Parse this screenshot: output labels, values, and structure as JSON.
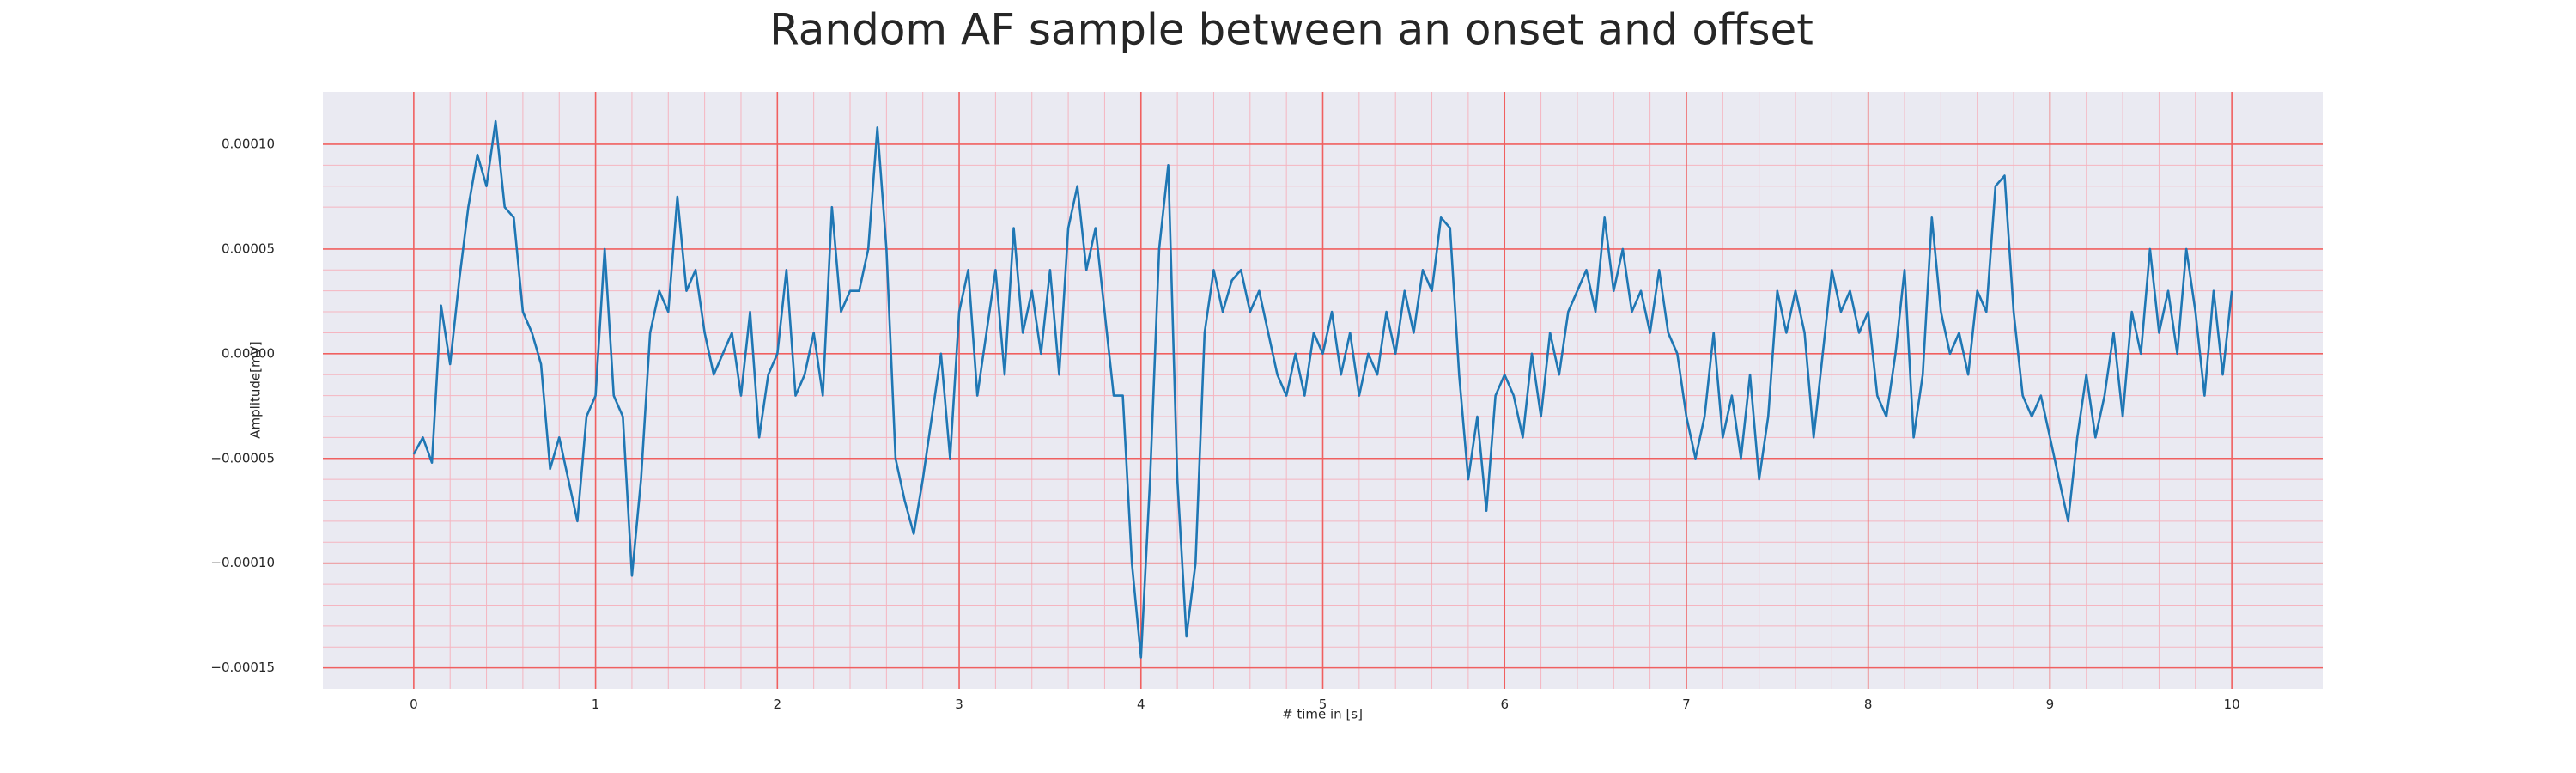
{
  "chart_data": {
    "type": "line",
    "title": "Random AF sample between an onset and offset",
    "xlabel": "# time in [s]",
    "ylabel": "Amplitude[mV]",
    "color": "#1f77b4",
    "grid": true,
    "minor_grid": true,
    "xlim": [
      -0.5,
      10.5
    ],
    "ylim": [
      -0.00016,
      0.000125
    ],
    "xticks": [
      0,
      1,
      2,
      3,
      4,
      5,
      6,
      7,
      8,
      9,
      10
    ],
    "yticks": [
      {
        "value": 0.0001,
        "label": "0.00010"
      },
      {
        "value": 5e-05,
        "label": "0.00005"
      },
      {
        "value": 0,
        "label": "0.00000"
      },
      {
        "value": -5e-05,
        "label": "−0.00005"
      },
      {
        "value": -0.0001,
        "label": "−0.00010"
      },
      {
        "value": -0.00015,
        "label": "−0.00015"
      }
    ],
    "x": [
      0,
      0.05,
      0.1,
      0.15,
      0.2,
      0.25,
      0.3,
      0.35,
      0.4,
      0.45,
      0.5,
      0.55,
      0.6,
      0.65,
      0.7,
      0.75,
      0.8,
      0.85,
      0.9,
      0.95,
      1,
      1.05,
      1.1,
      1.15,
      1.2,
      1.25,
      1.3,
      1.35,
      1.4,
      1.45,
      1.5,
      1.55,
      1.6,
      1.65,
      1.7,
      1.75,
      1.8,
      1.85,
      1.9,
      1.95,
      2,
      2.05,
      2.1,
      2.15,
      2.2,
      2.25,
      2.3,
      2.35,
      2.4,
      2.45,
      2.5,
      2.55,
      2.6,
      2.65,
      2.7,
      2.75,
      2.8,
      2.85,
      2.9,
      2.95,
      3,
      3.05,
      3.1,
      3.15,
      3.2,
      3.25,
      3.3,
      3.35,
      3.4,
      3.45,
      3.5,
      3.55,
      3.6,
      3.65,
      3.7,
      3.75,
      3.8,
      3.85,
      3.9,
      3.95,
      4,
      4.05,
      4.1,
      4.15,
      4.2,
      4.25,
      4.3,
      4.35,
      4.4,
      4.45,
      4.5,
      4.55,
      4.6,
      4.65,
      4.7,
      4.75,
      4.8,
      4.85,
      4.9,
      4.95,
      5,
      5.05,
      5.1,
      5.15,
      5.2,
      5.25,
      5.3,
      5.35,
      5.4,
      5.45,
      5.5,
      5.55,
      5.6,
      5.65,
      5.7,
      5.75,
      5.8,
      5.85,
      5.9,
      5.95,
      6,
      6.05,
      6.1,
      6.15,
      6.2,
      6.25,
      6.3,
      6.35,
      6.4,
      6.45,
      6.5,
      6.55,
      6.6,
      6.65,
      6.7,
      6.75,
      6.8,
      6.85,
      6.9,
      6.95,
      7,
      7.05,
      7.1,
      7.15,
      7.2,
      7.25,
      7.3,
      7.35,
      7.4,
      7.45,
      7.5,
      7.55,
      7.6,
      7.65,
      7.7,
      7.75,
      7.8,
      7.85,
      7.9,
      7.95,
      8,
      8.05,
      8.1,
      8.15,
      8.2,
      8.25,
      8.3,
      8.35,
      8.4,
      8.45,
      8.5,
      8.55,
      8.6,
      8.65,
      8.7,
      8.75,
      8.8,
      8.85,
      8.9,
      8.95,
      9,
      9.05,
      9.1,
      9.15,
      9.2,
      9.25,
      9.3,
      9.35,
      9.4,
      9.45,
      9.5,
      9.55,
      9.6,
      9.65,
      9.7,
      9.75,
      9.8,
      9.85,
      9.9,
      9.95,
      10
    ],
    "values": [
      -4.8e-05,
      -4e-05,
      -5.2e-05,
      2.3e-05,
      -5e-06,
      3.5e-05,
      7e-05,
      9.5e-05,
      8e-05,
      0.000111,
      7e-05,
      6.5e-05,
      2e-05,
      1e-05,
      -5e-06,
      -5.5e-05,
      -4e-05,
      -6e-05,
      -8e-05,
      -3e-05,
      -2e-05,
      5e-05,
      -2e-05,
      -3e-05,
      -0.000106,
      -6e-05,
      1e-05,
      3e-05,
      2e-05,
      7.5e-05,
      3e-05,
      4e-05,
      1e-05,
      -1e-05,
      0,
      1e-05,
      -2e-05,
      2e-05,
      -4e-05,
      -1e-05,
      0,
      4e-05,
      -2e-05,
      -1e-05,
      1e-05,
      -2e-05,
      7e-05,
      2e-05,
      3e-05,
      3e-05,
      5e-05,
      0.000108,
      5e-05,
      -5e-05,
      -7e-05,
      -8.6e-05,
      -6e-05,
      -3e-05,
      0,
      -5e-05,
      2e-05,
      4e-05,
      -2e-05,
      1e-05,
      4e-05,
      -1e-05,
      6e-05,
      1e-05,
      3e-05,
      0,
      4e-05,
      -1e-05,
      6e-05,
      8e-05,
      4e-05,
      6e-05,
      2e-05,
      -2e-05,
      -2e-05,
      -0.0001,
      -0.000145,
      -6e-05,
      5e-05,
      9e-05,
      -6e-05,
      -0.000135,
      -0.0001,
      1e-05,
      4e-05,
      2e-05,
      3.5e-05,
      4e-05,
      2e-05,
      3e-05,
      1e-05,
      -1e-05,
      -2e-05,
      0,
      -2e-05,
      1e-05,
      0,
      2e-05,
      -1e-05,
      1e-05,
      -2e-05,
      0,
      -1e-05,
      2e-05,
      0,
      3e-05,
      1e-05,
      4e-05,
      3e-05,
      6.5e-05,
      6e-05,
      -1e-05,
      -6e-05,
      -3e-05,
      -7.5e-05,
      -2e-05,
      -1e-05,
      -2e-05,
      -4e-05,
      0,
      -3e-05,
      1e-05,
      -1e-05,
      2e-05,
      3e-05,
      4e-05,
      2e-05,
      6.5e-05,
      3e-05,
      5e-05,
      2e-05,
      3e-05,
      1e-05,
      4e-05,
      1e-05,
      0,
      -3e-05,
      -5e-05,
      -3e-05,
      1e-05,
      -4e-05,
      -2e-05,
      -5e-05,
      -1e-05,
      -6e-05,
      -3e-05,
      3e-05,
      1e-05,
      3e-05,
      1e-05,
      -4e-05,
      0,
      4e-05,
      2e-05,
      3e-05,
      1e-05,
      2e-05,
      -2e-05,
      -3e-05,
      0,
      4e-05,
      -4e-05,
      -1e-05,
      6.5e-05,
      2e-05,
      0,
      1e-05,
      -1e-05,
      3e-05,
      2e-05,
      8e-05,
      8.5e-05,
      2e-05,
      -2e-05,
      -3e-05,
      -2e-05,
      -4e-05,
      -6e-05,
      -8e-05,
      -4e-05,
      -1e-05,
      -4e-05,
      -2e-05,
      1e-05,
      -3e-05,
      2e-05,
      0,
      5e-05,
      1e-05,
      3e-05,
      0,
      5e-05,
      2e-05,
      -2e-05,
      3e-05,
      -1e-05,
      3e-05
    ]
  }
}
